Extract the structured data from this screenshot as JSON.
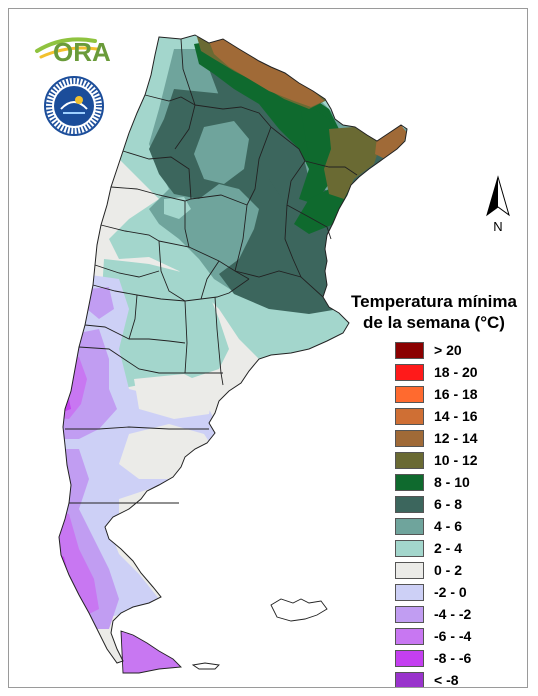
{
  "logo": {
    "text": "ORA"
  },
  "north_label": "N",
  "legend": {
    "title_line1": "Temperatura mínima",
    "title_line2": "de la semana (°C)",
    "items": [
      {
        "label": "> 20",
        "color": "#8b0000"
      },
      {
        "label": "18 - 20",
        "color": "#ff1a1a"
      },
      {
        "label": "16 - 18",
        "color": "#ff6a2f"
      },
      {
        "label": "14 - 16",
        "color": "#cf6f34"
      },
      {
        "label": "12 - 14",
        "color": "#a06a37"
      },
      {
        "label": "10 - 12",
        "color": "#6a6a33"
      },
      {
        "label": "8 - 10",
        "color": "#0f6a2e"
      },
      {
        "label": "6 - 8",
        "color": "#3c665d"
      },
      {
        "label": "4 - 6",
        "color": "#6fa49c"
      },
      {
        "label": "2 - 4",
        "color": "#a3d6cc"
      },
      {
        "label": "0 - 2",
        "color": "#ebebe8"
      },
      {
        "label": "-2 - 0",
        "color": "#cdd0f6"
      },
      {
        "label": "-4 - -2",
        "color": "#c19df2"
      },
      {
        "label": "-6 - -4",
        "color": "#c877f2"
      },
      {
        "label": "-8 - -6",
        "color": "#c43ff0"
      },
      {
        "label": "< -8",
        "color": "#9933cc"
      }
    ]
  }
}
